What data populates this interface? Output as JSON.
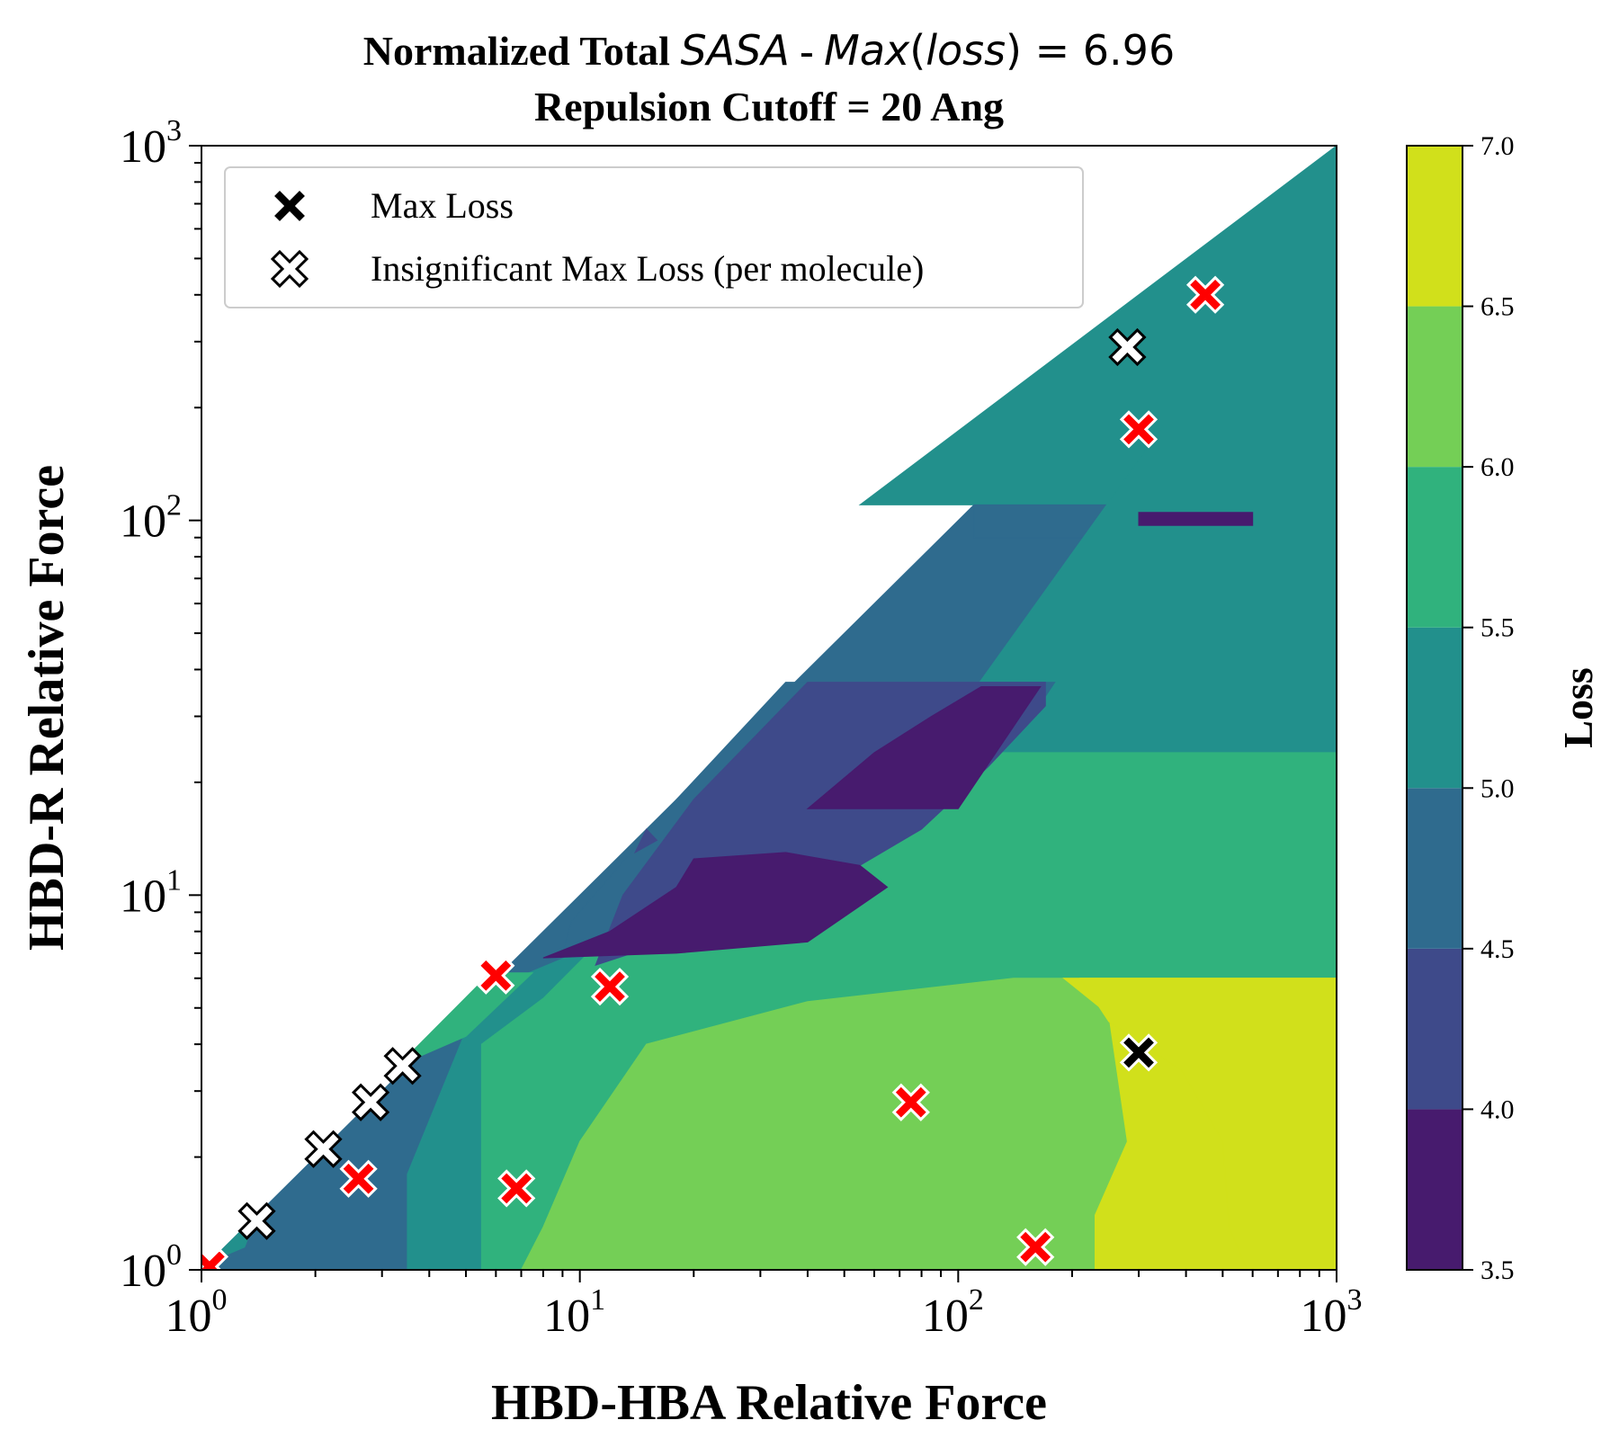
{
  "chart_data": {
    "type": "heatmap",
    "title_prefix": "Normalized Total ",
    "title_var": "SASA",
    "title_mid": " - ",
    "title_fn": "Max",
    "title_arg_open": "(",
    "title_arg": "loss",
    "title_arg_close": ")",
    "title_value": " = 6.96",
    "subtitle": "Repulsion Cutoff = 20 Ang",
    "xlabel": "HBD-HBA Relative Force",
    "ylabel": "HBD-R Relative Force",
    "xscale": "log",
    "yscale": "log",
    "xlim": [
      1,
      1000
    ],
    "ylim": [
      1,
      1000
    ],
    "x_ticks": [
      {
        "value": 1,
        "base": "10",
        "exp": "0"
      },
      {
        "value": 10,
        "base": "10",
        "exp": "1"
      },
      {
        "value": 100,
        "base": "10",
        "exp": "2"
      },
      {
        "value": 1000,
        "base": "10",
        "exp": "3"
      }
    ],
    "y_ticks": [
      {
        "value": 1,
        "base": "10",
        "exp": "0"
      },
      {
        "value": 10,
        "base": "10",
        "exp": "1"
      },
      {
        "value": 100,
        "base": "10",
        "exp": "2"
      },
      {
        "value": 1000,
        "base": "10",
        "exp": "3"
      }
    ],
    "colorbar": {
      "label": "Loss",
      "levels": [
        3.5,
        4.0,
        4.5,
        5.0,
        5.5,
        6.0,
        6.5,
        7.0
      ],
      "tick_labels": [
        "3.5",
        "4.0",
        "4.5",
        "5.0",
        "5.5",
        "6.0",
        "6.5",
        "7.0"
      ],
      "colors": [
        "#471b6e",
        "#3e4a8a",
        "#2f6b8e",
        "#22908c",
        "#30b27d",
        "#74cf56",
        "#d1e01b"
      ]
    },
    "regions": [
      {
        "level": 4.5,
        "polygon": [
          [
            1,
            1
          ],
          [
            1000,
            1
          ],
          [
            1000,
            1000
          ]
        ]
      },
      {
        "level": 5.0,
        "polygon": [
          [
            55,
            110
          ],
          [
            1000,
            110
          ],
          [
            1000,
            1000
          ]
        ]
      },
      {
        "level": 4.5,
        "polygon": [
          [
            110,
            110
          ],
          [
            1000,
            110
          ],
          [
            1000,
            90
          ],
          [
            110,
            90
          ]
        ]
      },
      {
        "level": 5.0,
        "polygon": [
          [
            3.5,
            1
          ],
          [
            1000,
            1
          ],
          [
            1000,
            180
          ],
          [
            350,
            180
          ],
          [
            60,
            15
          ],
          [
            5.5,
            5.5
          ],
          [
            3.5,
            1.8
          ]
        ]
      },
      {
        "level": 5.0,
        "polygon": [
          [
            1.05,
            1.05
          ],
          [
            1.4,
            1.4
          ],
          [
            1.3,
            1.15
          ]
        ]
      },
      {
        "level": 5.5,
        "polygon": [
          [
            5.5,
            1
          ],
          [
            1000,
            1
          ],
          [
            1000,
            24
          ],
          [
            130,
            24
          ],
          [
            70,
            18
          ],
          [
            30,
            12
          ],
          [
            12,
            8
          ],
          [
            8,
            5.3
          ],
          [
            5.5,
            4
          ]
        ]
      },
      {
        "level": 5.5,
        "polygon": [
          [
            3.3,
            3.5
          ],
          [
            5.8,
            6.2
          ],
          [
            7.5,
            6.2
          ],
          [
            5,
            4.2
          ]
        ]
      },
      {
        "level": 6.0,
        "polygon": [
          [
            7,
            1
          ],
          [
            1000,
            1
          ],
          [
            1000,
            6
          ],
          [
            350,
            6
          ],
          [
            140,
            6
          ],
          [
            40,
            5.2
          ],
          [
            15,
            4
          ],
          [
            10,
            2.2
          ],
          [
            8,
            1.3
          ]
        ]
      },
      {
        "level": 6.5,
        "polygon": [
          [
            230,
            1
          ],
          [
            1000,
            1
          ],
          [
            1000,
            6
          ],
          [
            190,
            6
          ],
          [
            250,
            4.8
          ],
          [
            280,
            2.2
          ],
          [
            230,
            1.4
          ]
        ]
      },
      {
        "level": 7.0,
        "polygon": [
          [
            580,
            1
          ],
          [
            1000,
            1
          ],
          [
            1000,
            6
          ],
          [
            210,
            6
          ],
          [
            250,
            4.6
          ],
          [
            390,
            3.4
          ],
          [
            500,
            2.2
          ],
          [
            520,
            1.3
          ]
        ]
      },
      {
        "level": 4.5,
        "polygon": [
          [
            9,
            7
          ],
          [
            20,
            9
          ],
          [
            45,
            12
          ],
          [
            100,
            20
          ],
          [
            150,
            28
          ],
          [
            180,
            37
          ],
          [
            35,
            37
          ],
          [
            18,
            18
          ],
          [
            9.5,
            8.5
          ]
        ]
      },
      {
        "level": 4.0,
        "polygon": [
          [
            11,
            6.5
          ],
          [
            15,
            7.2
          ],
          [
            30,
            9
          ],
          [
            55,
            12
          ],
          [
            80,
            15
          ],
          [
            120,
            22
          ],
          [
            170,
            32
          ],
          [
            170,
            37
          ],
          [
            40,
            37
          ],
          [
            20,
            18
          ],
          [
            13,
            10
          ]
        ]
      },
      {
        "level": 4.0,
        "polygon": [
          [
            14,
            13
          ],
          [
            16,
            14
          ],
          [
            15,
            15
          ]
        ]
      },
      {
        "level": 3.5,
        "polygon": [
          [
            8,
            6.8
          ],
          [
            18,
            7
          ],
          [
            40,
            7.5
          ],
          [
            65,
            10.5
          ],
          [
            55,
            12
          ],
          [
            35,
            13
          ],
          [
            20,
            12.5
          ],
          [
            18,
            10.5
          ],
          [
            12,
            8
          ]
        ]
      },
      {
        "level": 3.5,
        "polygon": [
          [
            40,
            17
          ],
          [
            100,
            17
          ],
          [
            165,
            36
          ],
          [
            115,
            36
          ],
          [
            85,
            30
          ],
          [
            60,
            24
          ]
        ]
      },
      {
        "level": 3.5,
        "polygon": [
          [
            300,
            97
          ],
          [
            600,
            97
          ],
          [
            600,
            105
          ],
          [
            300,
            105
          ]
        ]
      }
    ],
    "series": [
      {
        "name": "Max Loss",
        "marker": "X",
        "color": "#000000",
        "points": [
          [
            300,
            3.8
          ]
        ]
      },
      {
        "name": "Insignificant Max Loss (per molecule)",
        "marker": "X",
        "color": "#ffffff",
        "points": [
          [
            1.4,
            1.35
          ],
          [
            2.1,
            2.1
          ],
          [
            2.8,
            2.8
          ],
          [
            3.4,
            3.5
          ],
          [
            280,
            290
          ]
        ]
      },
      {
        "marker": "X",
        "color": "#ff0000",
        "points": [
          [
            1.05,
            1.02
          ],
          [
            2.6,
            1.75
          ],
          [
            6,
            6.1
          ],
          [
            6.8,
            1.65
          ],
          [
            12,
            5.7
          ],
          [
            75,
            2.8
          ],
          [
            160,
            1.15
          ],
          [
            300,
            175
          ],
          [
            450,
            400
          ]
        ]
      }
    ],
    "legend": {
      "position": "upper left"
    }
  }
}
